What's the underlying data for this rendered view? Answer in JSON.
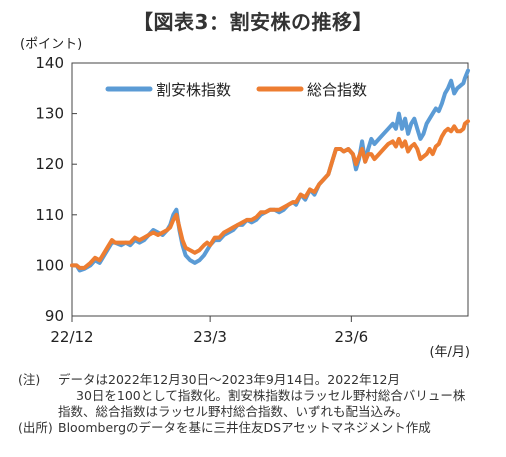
{
  "title": "【図表3：割安株の推移】",
  "notes": {
    "note_label": "(注)",
    "note_line1": "データは2022年12月30日～2023年9月14日。2022年12月",
    "note_line2": "30日を100として指数化。割安株指数はラッセル野村総合バリュー株",
    "note_line3": "指数、総合指数はラッセル野村総合指数、いずれも配当込み。",
    "source_label": "(出所)",
    "source_text": "Bloombergのデータを基に三井住友DSアセットマネジメント作成"
  },
  "chart_data": {
    "type": "line",
    "ylabel": "(ポイント)",
    "xlabel": "(年/月)",
    "ylim": [
      90,
      140
    ],
    "yticks": [
      90,
      100,
      110,
      120,
      130,
      140
    ],
    "xticks": [
      {
        "label": "22/12",
        "day": 0
      },
      {
        "label": "23/3",
        "day": 90
      },
      {
        "label": "23/6",
        "day": 182
      }
    ],
    "x_range_days": [
      0,
      258
    ],
    "grid": false,
    "legend_position": "top-left",
    "series": [
      {
        "name": "割安株指数",
        "color": "#5b9bd5",
        "points": [
          [
            0,
            100
          ],
          [
            3,
            100
          ],
          [
            5,
            99
          ],
          [
            8,
            99.3
          ],
          [
            12,
            100
          ],
          [
            15,
            101
          ],
          [
            18,
            100.5
          ],
          [
            20,
            101.5
          ],
          [
            23,
            103
          ],
          [
            26,
            104.5
          ],
          [
            28,
            104.5
          ],
          [
            32,
            104
          ],
          [
            35,
            104.5
          ],
          [
            38,
            104
          ],
          [
            41,
            105
          ],
          [
            44,
            104.5
          ],
          [
            47,
            105
          ],
          [
            50,
            106
          ],
          [
            53,
            107
          ],
          [
            56,
            106.5
          ],
          [
            59,
            106
          ],
          [
            62,
            107
          ],
          [
            64,
            108
          ],
          [
            66,
            110
          ],
          [
            68,
            111
          ],
          [
            70,
            107
          ],
          [
            72,
            104
          ],
          [
            74,
            102
          ],
          [
            77,
            101
          ],
          [
            80,
            100.5
          ],
          [
            83,
            101
          ],
          [
            86,
            102
          ],
          [
            88,
            103
          ],
          [
            90,
            104
          ],
          [
            93,
            105
          ],
          [
            96,
            105
          ],
          [
            99,
            106
          ],
          [
            102,
            106.5
          ],
          [
            105,
            107
          ],
          [
            108,
            108
          ],
          [
            111,
            108
          ],
          [
            114,
            109
          ],
          [
            117,
            108.5
          ],
          [
            120,
            109
          ],
          [
            123,
            110
          ],
          [
            126,
            110.5
          ],
          [
            129,
            111
          ],
          [
            132,
            111
          ],
          [
            135,
            110.5
          ],
          [
            138,
            111
          ],
          [
            141,
            112
          ],
          [
            144,
            112.5
          ],
          [
            146,
            112
          ],
          [
            149,
            114
          ],
          [
            152,
            113
          ],
          [
            155,
            115
          ],
          [
            158,
            114
          ],
          [
            161,
            116
          ],
          [
            164,
            117
          ],
          [
            167,
            118
          ],
          [
            170,
            121
          ],
          [
            172,
            123
          ],
          [
            175,
            123
          ],
          [
            177,
            122.5
          ],
          [
            180,
            123
          ],
          [
            183,
            122
          ],
          [
            185,
            119
          ],
          [
            187,
            121
          ],
          [
            189,
            124.5
          ],
          [
            191,
            120.5
          ],
          [
            193,
            123
          ],
          [
            195,
            125
          ],
          [
            197,
            124
          ],
          [
            200,
            125
          ],
          [
            203,
            126
          ],
          [
            206,
            127
          ],
          [
            209,
            128
          ],
          [
            211,
            127
          ],
          [
            213,
            130
          ],
          [
            215,
            127
          ],
          [
            217,
            129
          ],
          [
            219,
            126
          ],
          [
            221,
            128
          ],
          [
            223,
            129
          ],
          [
            225,
            127
          ],
          [
            227,
            125
          ],
          [
            229,
            126
          ],
          [
            231,
            128
          ],
          [
            233,
            129
          ],
          [
            235,
            130
          ],
          [
            237,
            131
          ],
          [
            239,
            130.5
          ],
          [
            241,
            132
          ],
          [
            243,
            134
          ],
          [
            245,
            135
          ],
          [
            247,
            136.5
          ],
          [
            249,
            134
          ],
          [
            251,
            135
          ],
          [
            253,
            135.5
          ],
          [
            255,
            136
          ],
          [
            256,
            137
          ],
          [
            258,
            138.5
          ]
        ]
      },
      {
        "name": "総合指数",
        "color": "#ed7d31",
        "points": [
          [
            0,
            100
          ],
          [
            3,
            100
          ],
          [
            5,
            99.5
          ],
          [
            8,
            99.5
          ],
          [
            12,
            100.5
          ],
          [
            15,
            101.5
          ],
          [
            18,
            101
          ],
          [
            20,
            102
          ],
          [
            23,
            103.5
          ],
          [
            26,
            105
          ],
          [
            28,
            104.5
          ],
          [
            32,
            104.5
          ],
          [
            35,
            104.5
          ],
          [
            38,
            104.5
          ],
          [
            41,
            105.5
          ],
          [
            44,
            105
          ],
          [
            47,
            105.5
          ],
          [
            50,
            106
          ],
          [
            53,
            106.5
          ],
          [
            56,
            106
          ],
          [
            59,
            106.5
          ],
          [
            62,
            107
          ],
          [
            64,
            107.5
          ],
          [
            66,
            109
          ],
          [
            68,
            110
          ],
          [
            70,
            107.5
          ],
          [
            72,
            105
          ],
          [
            74,
            103.5
          ],
          [
            77,
            103
          ],
          [
            80,
            102.5
          ],
          [
            83,
            103
          ],
          [
            86,
            104
          ],
          [
            88,
            104.5
          ],
          [
            90,
            104
          ],
          [
            93,
            105.5
          ],
          [
            96,
            105.5
          ],
          [
            99,
            106.5
          ],
          [
            102,
            107
          ],
          [
            105,
            107.5
          ],
          [
            108,
            108
          ],
          [
            111,
            108.5
          ],
          [
            114,
            109
          ],
          [
            117,
            109
          ],
          [
            120,
            109.5
          ],
          [
            123,
            110.5
          ],
          [
            126,
            110.5
          ],
          [
            129,
            111
          ],
          [
            132,
            111
          ],
          [
            135,
            111
          ],
          [
            138,
            111.5
          ],
          [
            141,
            112
          ],
          [
            144,
            112.5
          ],
          [
            146,
            112.5
          ],
          [
            149,
            114
          ],
          [
            152,
            113.5
          ],
          [
            155,
            115
          ],
          [
            158,
            114.5
          ],
          [
            161,
            116
          ],
          [
            164,
            117
          ],
          [
            167,
            118
          ],
          [
            170,
            121
          ],
          [
            172,
            123
          ],
          [
            175,
            123
          ],
          [
            177,
            122.5
          ],
          [
            180,
            123
          ],
          [
            183,
            122
          ],
          [
            185,
            120
          ],
          [
            187,
            121.5
          ],
          [
            189,
            123
          ],
          [
            191,
            120.5
          ],
          [
            193,
            122
          ],
          [
            195,
            122
          ],
          [
            197,
            121
          ],
          [
            200,
            122
          ],
          [
            203,
            123
          ],
          [
            206,
            124
          ],
          [
            209,
            124.5
          ],
          [
            211,
            123.5
          ],
          [
            213,
            125
          ],
          [
            215,
            123.5
          ],
          [
            217,
            124.5
          ],
          [
            219,
            122.5
          ],
          [
            221,
            123.5
          ],
          [
            223,
            124
          ],
          [
            225,
            123
          ],
          [
            227,
            121
          ],
          [
            229,
            121.5
          ],
          [
            231,
            122
          ],
          [
            233,
            123
          ],
          [
            235,
            122
          ],
          [
            237,
            123.5
          ],
          [
            239,
            124
          ],
          [
            241,
            125.5
          ],
          [
            243,
            126.5
          ],
          [
            245,
            127
          ],
          [
            247,
            126.5
          ],
          [
            249,
            127.5
          ],
          [
            251,
            126.5
          ],
          [
            253,
            126.5
          ],
          [
            255,
            127
          ],
          [
            256,
            128
          ],
          [
            258,
            128.5
          ]
        ]
      }
    ]
  }
}
